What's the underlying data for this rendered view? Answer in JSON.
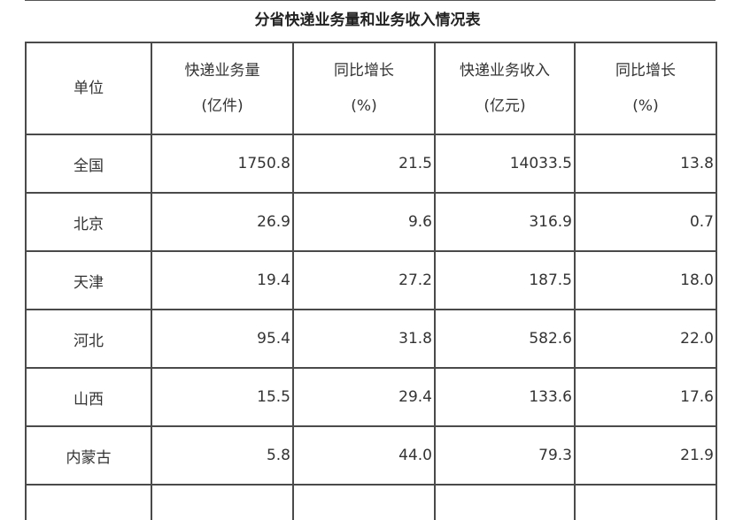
{
  "title": "分省快递业务量和业务收入情况表",
  "table": {
    "header": [
      [
        "单位"
      ],
      [
        "快递业务量",
        "(亿件)"
      ],
      [
        "同比增长",
        "(%)"
      ],
      [
        "快递业务收入",
        "(亿元)"
      ],
      [
        "同比增长",
        "(%)"
      ]
    ],
    "rows": [
      [
        "全国",
        "1750.8",
        "21.5",
        "14033.5",
        "13.8"
      ],
      [
        "北京",
        "26.9",
        "9.6",
        "316.9",
        "0.7"
      ],
      [
        "天津",
        "19.4",
        "27.2",
        "187.5",
        "18.0"
      ],
      [
        "河北",
        "95.4",
        "31.8",
        "582.6",
        "22.0"
      ],
      [
        "山西",
        "15.5",
        "29.4",
        "133.6",
        "17.6"
      ],
      [
        "内蒙古",
        "5.8",
        "44.0",
        "79.3",
        "21.9"
      ]
    ]
  }
}
